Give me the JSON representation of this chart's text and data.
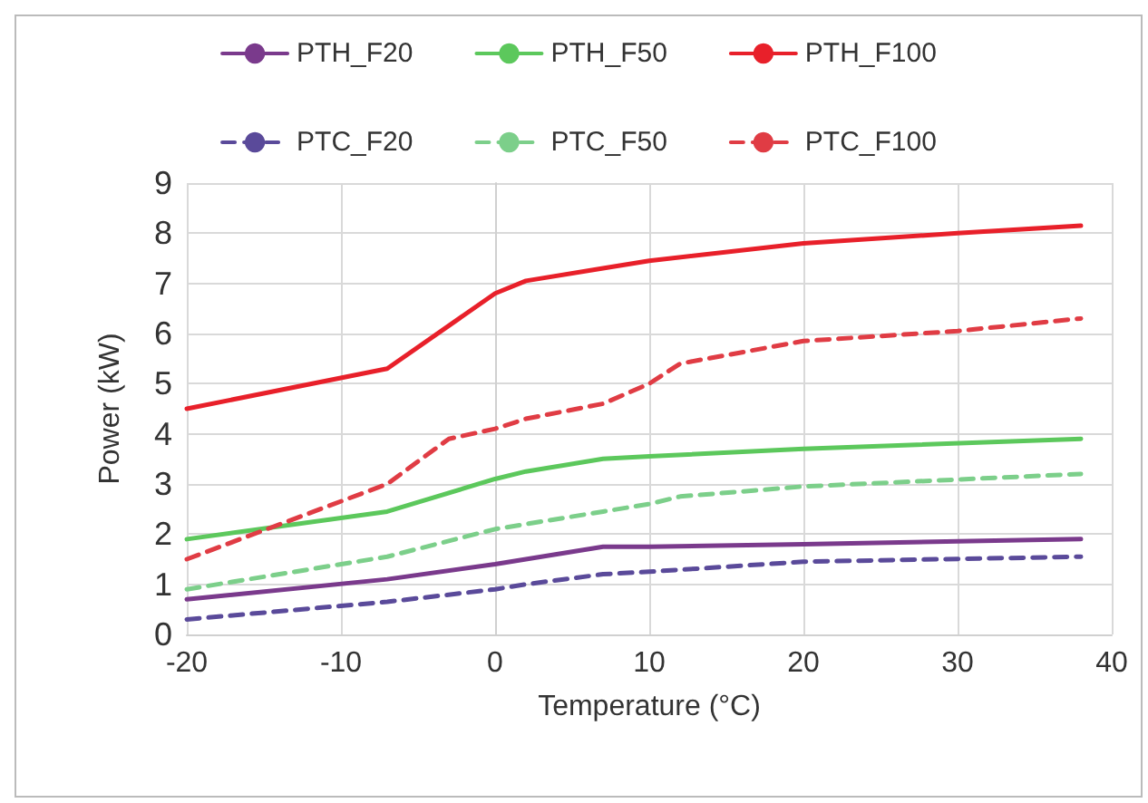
{
  "chart_data": {
    "type": "line",
    "xlabel": "Temperature (°C)",
    "ylabel": "Power (kW)",
    "xlim": [
      -20,
      40
    ],
    "xticks": [
      -20,
      -10,
      0,
      10,
      20,
      30,
      40
    ],
    "ylim": [
      0,
      9
    ],
    "yticks": [
      0,
      1,
      2,
      3,
      4,
      5,
      6,
      7,
      8,
      9
    ],
    "grid": true,
    "legend": "top",
    "marker": "none",
    "series": [
      {
        "name": "PTH_F20",
        "color": "#7a3a8c",
        "line_style": "solid",
        "x": [
          -20,
          -7,
          0,
          2,
          7,
          10,
          20,
          38
        ],
        "values": [
          0.7,
          1.1,
          1.4,
          1.5,
          1.75,
          1.75,
          1.8,
          1.9
        ]
      },
      {
        "name": "PTH_F50",
        "color": "#5cc85c",
        "line_style": "solid",
        "x": [
          -20,
          -7,
          0,
          2,
          7,
          10,
          20,
          38
        ],
        "values": [
          1.9,
          2.45,
          3.1,
          3.25,
          3.5,
          3.55,
          3.7,
          3.9
        ]
      },
      {
        "name": "PTH_F100",
        "color": "#e8202a",
        "line_style": "solid",
        "x": [
          -20,
          -7,
          0,
          2,
          7,
          10,
          20,
          30,
          38
        ],
        "values": [
          4.5,
          5.3,
          6.8,
          7.05,
          7.3,
          7.45,
          7.8,
          8.0,
          8.15
        ]
      },
      {
        "name": "PTC_F20",
        "color": "#5a4a9a",
        "line_style": "dashed",
        "x": [
          -20,
          -7,
          0,
          2,
          7,
          10,
          20,
          38
        ],
        "values": [
          0.3,
          0.65,
          0.9,
          1.0,
          1.2,
          1.25,
          1.45,
          1.55
        ]
      },
      {
        "name": "PTC_F50",
        "color": "#7ccf8a",
        "line_style": "dashed",
        "x": [
          -20,
          -7,
          0,
          7,
          10,
          12,
          20,
          38
        ],
        "values": [
          0.9,
          1.55,
          2.1,
          2.45,
          2.6,
          2.75,
          2.95,
          3.2
        ]
      },
      {
        "name": "PTC_F100",
        "color": "#e03c44",
        "line_style": "dashed",
        "x": [
          -20,
          -7,
          -3,
          0,
          2,
          7,
          10,
          12,
          20,
          30,
          38
        ],
        "values": [
          1.5,
          3.0,
          3.9,
          4.1,
          4.3,
          4.6,
          5.0,
          5.4,
          5.85,
          6.05,
          6.3
        ]
      }
    ]
  }
}
